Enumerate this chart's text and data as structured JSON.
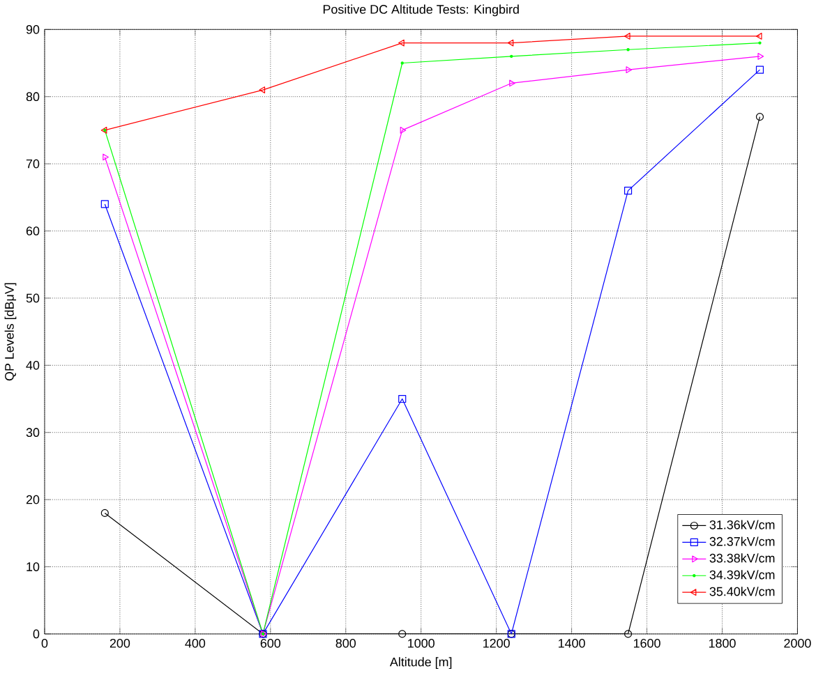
{
  "chart_data": {
    "type": "line",
    "title": "Positive DC Altitude Tests: Kingbird",
    "xlabel": "Altitude [m]",
    "ylabel": "QP Levels [dBμV]",
    "x": [
      160,
      580,
      950,
      1240,
      1550,
      1900
    ],
    "series": [
      {
        "name": "31.36kV/cm",
        "color": "#000000",
        "marker": "circle",
        "values": [
          18,
          0,
          0,
          0,
          0,
          77
        ]
      },
      {
        "name": "32.37kV/cm",
        "color": "#0000ff",
        "marker": "square",
        "values": [
          64,
          0,
          35,
          0,
          66,
          84
        ]
      },
      {
        "name": "33.38kV/cm",
        "color": "#ff00ff",
        "marker": "triangle",
        "values": [
          71,
          0,
          75,
          82,
          84,
          86
        ]
      },
      {
        "name": "34.39kV/cm",
        "color": "#00ff00",
        "marker": "circle",
        "values": [
          75,
          0,
          85,
          86,
          87,
          88
        ]
      },
      {
        "name": "35.40kV/cm",
        "color": "#ff0000",
        "marker": "triangle",
        "values": [
          75,
          81,
          88,
          88,
          89,
          89
        ]
      }
    ],
    "xlim": [
      0,
      2000
    ],
    "ylim": [
      0,
      90
    ],
    "xticks": [
      0,
      200,
      400,
      600,
      800,
      1000,
      1200,
      1400,
      1600,
      1800,
      2000
    ],
    "yticks": [
      0,
      10,
      20,
      30,
      40,
      50,
      60,
      70,
      80,
      90
    ],
    "grid": true,
    "legend": "bottom right",
    "line_style": "solid"
  }
}
